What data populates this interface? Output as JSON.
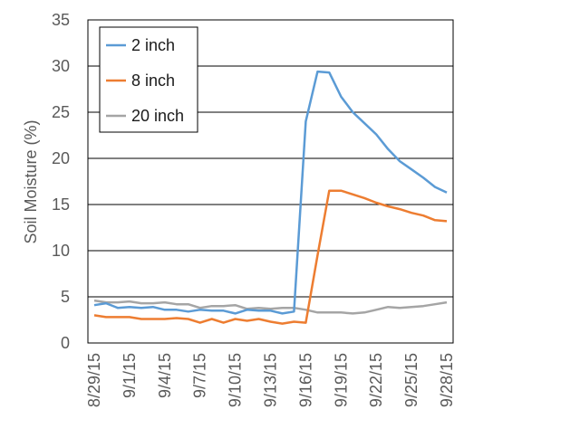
{
  "chart_data": {
    "type": "line",
    "title": "",
    "xlabel": "",
    "ylabel": "Soil Moisture (%)",
    "ylim": [
      0,
      35
    ],
    "yticks": [
      0,
      5,
      10,
      15,
      20,
      25,
      30,
      35
    ],
    "x": [
      "8/29/15",
      "8/30/15",
      "8/31/15",
      "9/1/15",
      "9/2/15",
      "9/3/15",
      "9/4/15",
      "9/5/15",
      "9/6/15",
      "9/7/15",
      "9/8/15",
      "9/9/15",
      "9/10/15",
      "9/11/15",
      "9/12/15",
      "9/13/15",
      "9/14/15",
      "9/15/15",
      "9/16/15",
      "9/17/15",
      "9/18/15",
      "9/19/15",
      "9/20/15",
      "9/21/15",
      "9/22/15",
      "9/23/15",
      "9/24/15",
      "9/25/15",
      "9/26/15",
      "9/27/15",
      "9/28/15"
    ],
    "xtick_labels": [
      "8/29/15",
      "9/1/15",
      "9/4/15",
      "9/7/15",
      "9/10/15",
      "9/13/15",
      "9/16/15",
      "9/19/15",
      "9/22/15",
      "9/25/15",
      "9/28/15"
    ],
    "grid": true,
    "legend_position": "top-left",
    "series": [
      {
        "name": "2 inch",
        "color": "#5B9BD5",
        "values": [
          4.1,
          4.3,
          3.8,
          3.9,
          3.8,
          3.9,
          3.6,
          3.6,
          3.4,
          3.6,
          3.5,
          3.5,
          3.2,
          3.6,
          3.5,
          3.5,
          3.2,
          3.4,
          24.0,
          29.4,
          29.3,
          26.7,
          25.0,
          23.8,
          22.6,
          21.0,
          19.7,
          18.8,
          17.9,
          16.9,
          16.3
        ]
      },
      {
        "name": "8 inch",
        "color": "#ED7D31",
        "values": [
          3.0,
          2.8,
          2.8,
          2.8,
          2.6,
          2.6,
          2.6,
          2.7,
          2.6,
          2.2,
          2.6,
          2.2,
          2.6,
          2.4,
          2.6,
          2.3,
          2.1,
          2.3,
          2.2,
          9.5,
          16.5,
          16.5,
          16.1,
          15.7,
          15.2,
          14.8,
          14.5,
          14.1,
          13.8,
          13.3,
          13.2
        ]
      },
      {
        "name": "20 inch",
        "color": "#A5A5A5",
        "values": [
          4.6,
          4.4,
          4.4,
          4.5,
          4.3,
          4.3,
          4.4,
          4.2,
          4.2,
          3.8,
          4.0,
          4.0,
          4.1,
          3.7,
          3.8,
          3.7,
          3.8,
          3.8,
          3.6,
          3.3,
          3.3,
          3.3,
          3.2,
          3.3,
          3.6,
          3.9,
          3.8,
          3.9,
          4.0,
          4.2,
          4.4
        ]
      }
    ]
  }
}
